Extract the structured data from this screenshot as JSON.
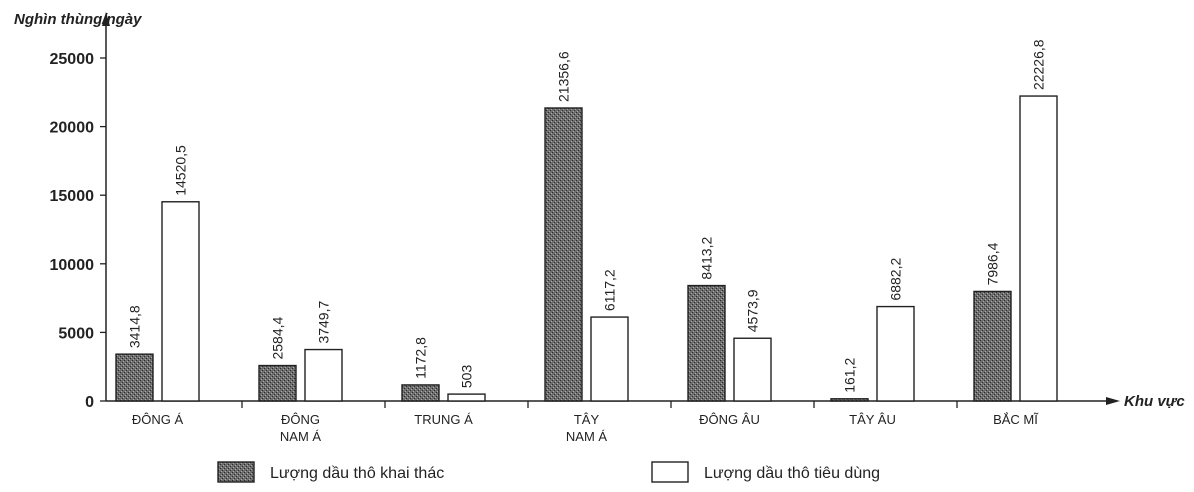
{
  "chart_data": {
    "type": "bar",
    "ylabel": "Nghìn thùng/ngày",
    "xlabel": "Khu vực",
    "ylim": [
      0,
      25000
    ],
    "yticks": [
      "0",
      "5000",
      "10000",
      "15000",
      "20000",
      "25000"
    ],
    "ytick_values": [
      0,
      5000,
      10000,
      15000,
      20000,
      25000
    ],
    "categories": [
      [
        "ĐÔNG Á"
      ],
      [
        "ĐÔNG",
        "NAM Á"
      ],
      [
        "TRUNG Á"
      ],
      [
        "TÂY",
        "NAM Á"
      ],
      [
        "ĐÔNG ÂU"
      ],
      [
        "TÂY ÂU"
      ],
      [
        "BẮC MĨ"
      ]
    ],
    "series": [
      {
        "name": "Lượng dầu thô khai thác",
        "values": [
          3414.8,
          2584.4,
          1172.8,
          21356.6,
          8413.2,
          161.2,
          7986.4
        ],
        "labels": [
          "3414,8",
          "2584,4",
          "1172,8",
          "21356,6",
          "8413,2",
          "161,2",
          "7986,4"
        ],
        "pattern": "stipple"
      },
      {
        "name": "Lượng dầu thô tiêu dùng",
        "values": [
          14520.5,
          3749.7,
          503,
          6117.2,
          4573.9,
          6882.2,
          22226.8
        ],
        "labels": [
          "14520,5",
          "3749,7",
          "503",
          "6117,2",
          "4573,9",
          "6882,2",
          "22226,8"
        ],
        "pattern": "white"
      }
    ],
    "legend_position": "bottom",
    "grid": false
  }
}
